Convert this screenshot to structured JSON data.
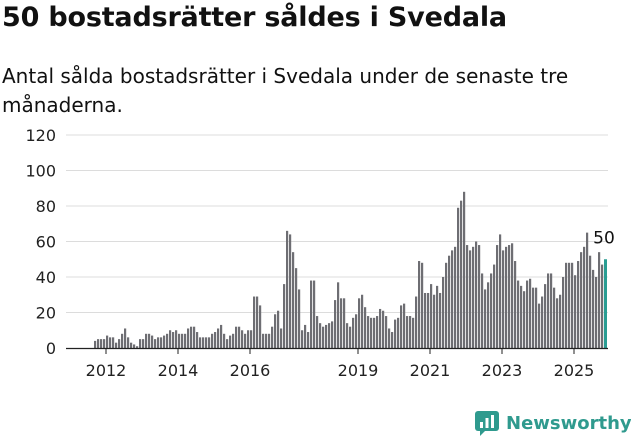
{
  "title": "50 bostadsrätter såldes i Svedala",
  "subtitle": "Antal sålda bostadsrätter i Svedala under de senaste tre månaderna.",
  "brand": {
    "name": "Newsworthy",
    "icon": "newsworthy-logo-icon",
    "color": "#2f9a8e"
  },
  "colors": {
    "bar": "#6e6e73",
    "highlight": "#2a9d93",
    "grid": "#dcdcdc",
    "axis": "#222222"
  },
  "chart_data": {
    "type": "bar",
    "title": "50 bostadsrätter såldes i Svedala",
    "subtitle": "Antal sålda bostadsrätter i Svedala under de senaste tre månaderna.",
    "xlabel": "",
    "ylabel": "",
    "ylim": [
      0,
      120
    ],
    "yticks": [
      0,
      20,
      40,
      60,
      80,
      100,
      120
    ],
    "xticks": [
      "2012",
      "2014",
      "2016",
      "2019",
      "2021",
      "2023",
      "2025"
    ],
    "grid": true,
    "legend": "none",
    "start_period": "2011-09",
    "x_ticks": [
      "2012",
      "2014",
      "2016",
      "2019",
      "2021",
      "2023",
      "2025"
    ],
    "series": [
      {
        "name": "",
        "values": [
          4,
          5,
          5,
          5,
          7,
          6,
          6,
          3,
          5,
          8,
          11,
          6,
          3,
          2,
          1,
          5,
          5,
          8,
          8,
          7,
          5,
          6,
          6,
          7,
          8,
          10,
          9,
          10,
          8,
          8,
          8,
          11,
          12,
          12,
          9,
          6,
          6,
          6,
          6,
          8,
          9,
          11,
          13,
          8,
          5,
          7,
          8,
          12,
          12,
          10,
          8,
          10,
          10,
          29,
          29,
          24,
          8,
          8,
          8,
          12,
          19,
          21,
          11,
          36,
          66,
          64,
          54,
          45,
          33,
          10,
          13,
          9,
          38,
          38,
          18,
          14,
          12,
          13,
          14,
          15,
          27,
          37,
          28,
          28,
          14,
          12,
          17,
          19,
          28,
          30,
          23,
          18,
          17,
          17,
          18,
          22,
          21,
          18,
          11,
          9,
          16,
          17,
          24,
          25,
          18,
          18,
          17,
          29,
          49,
          48,
          31,
          31,
          36,
          30,
          35,
          31,
          40,
          48,
          52,
          55,
          57,
          79,
          83,
          88,
          58,
          55,
          57,
          60,
          58,
          42,
          33,
          37,
          42,
          47,
          58,
          64,
          55,
          57,
          58,
          59,
          49,
          38,
          35,
          32,
          38,
          39,
          34,
          34,
          25,
          29,
          36,
          42,
          42,
          34,
          28,
          30,
          40,
          48,
          48,
          48,
          41,
          49,
          54,
          57,
          65,
          52,
          44,
          40,
          54,
          47,
          50
        ]
      }
    ],
    "annotations": [
      {
        "label": "50"
      }
    ]
  }
}
